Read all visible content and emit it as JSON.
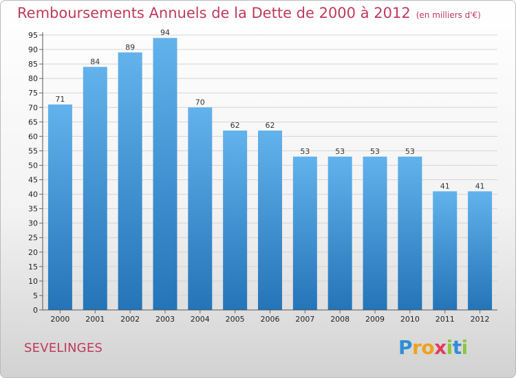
{
  "header": {
    "title": "Remboursements Annuels de la Dette de 2000 à 2012",
    "subtitle": "(en milliers d'€)"
  },
  "footer": {
    "commune": "SEVELINGES",
    "logo_letters": [
      "P",
      "r",
      "o",
      "x",
      "i",
      "t",
      "i"
    ]
  },
  "colors": {
    "title": "#c0395b",
    "bar_top": "#62b2ec",
    "bar_bottom": "#2474b8"
  },
  "chart_data": {
    "type": "bar",
    "title": "Remboursements Annuels de la Dette de 2000 à 2012",
    "subtitle": "(en milliers d'€)",
    "categories": [
      "2000",
      "2001",
      "2002",
      "2003",
      "2004",
      "2005",
      "2006",
      "2007",
      "2008",
      "2009",
      "2010",
      "2011",
      "2012"
    ],
    "values": [
      71,
      84,
      89,
      94,
      70,
      62,
      62,
      53,
      53,
      53,
      53,
      41,
      41
    ],
    "ylim": [
      0,
      95
    ],
    "ytick_step": 5,
    "grid": true,
    "legend": "none"
  }
}
